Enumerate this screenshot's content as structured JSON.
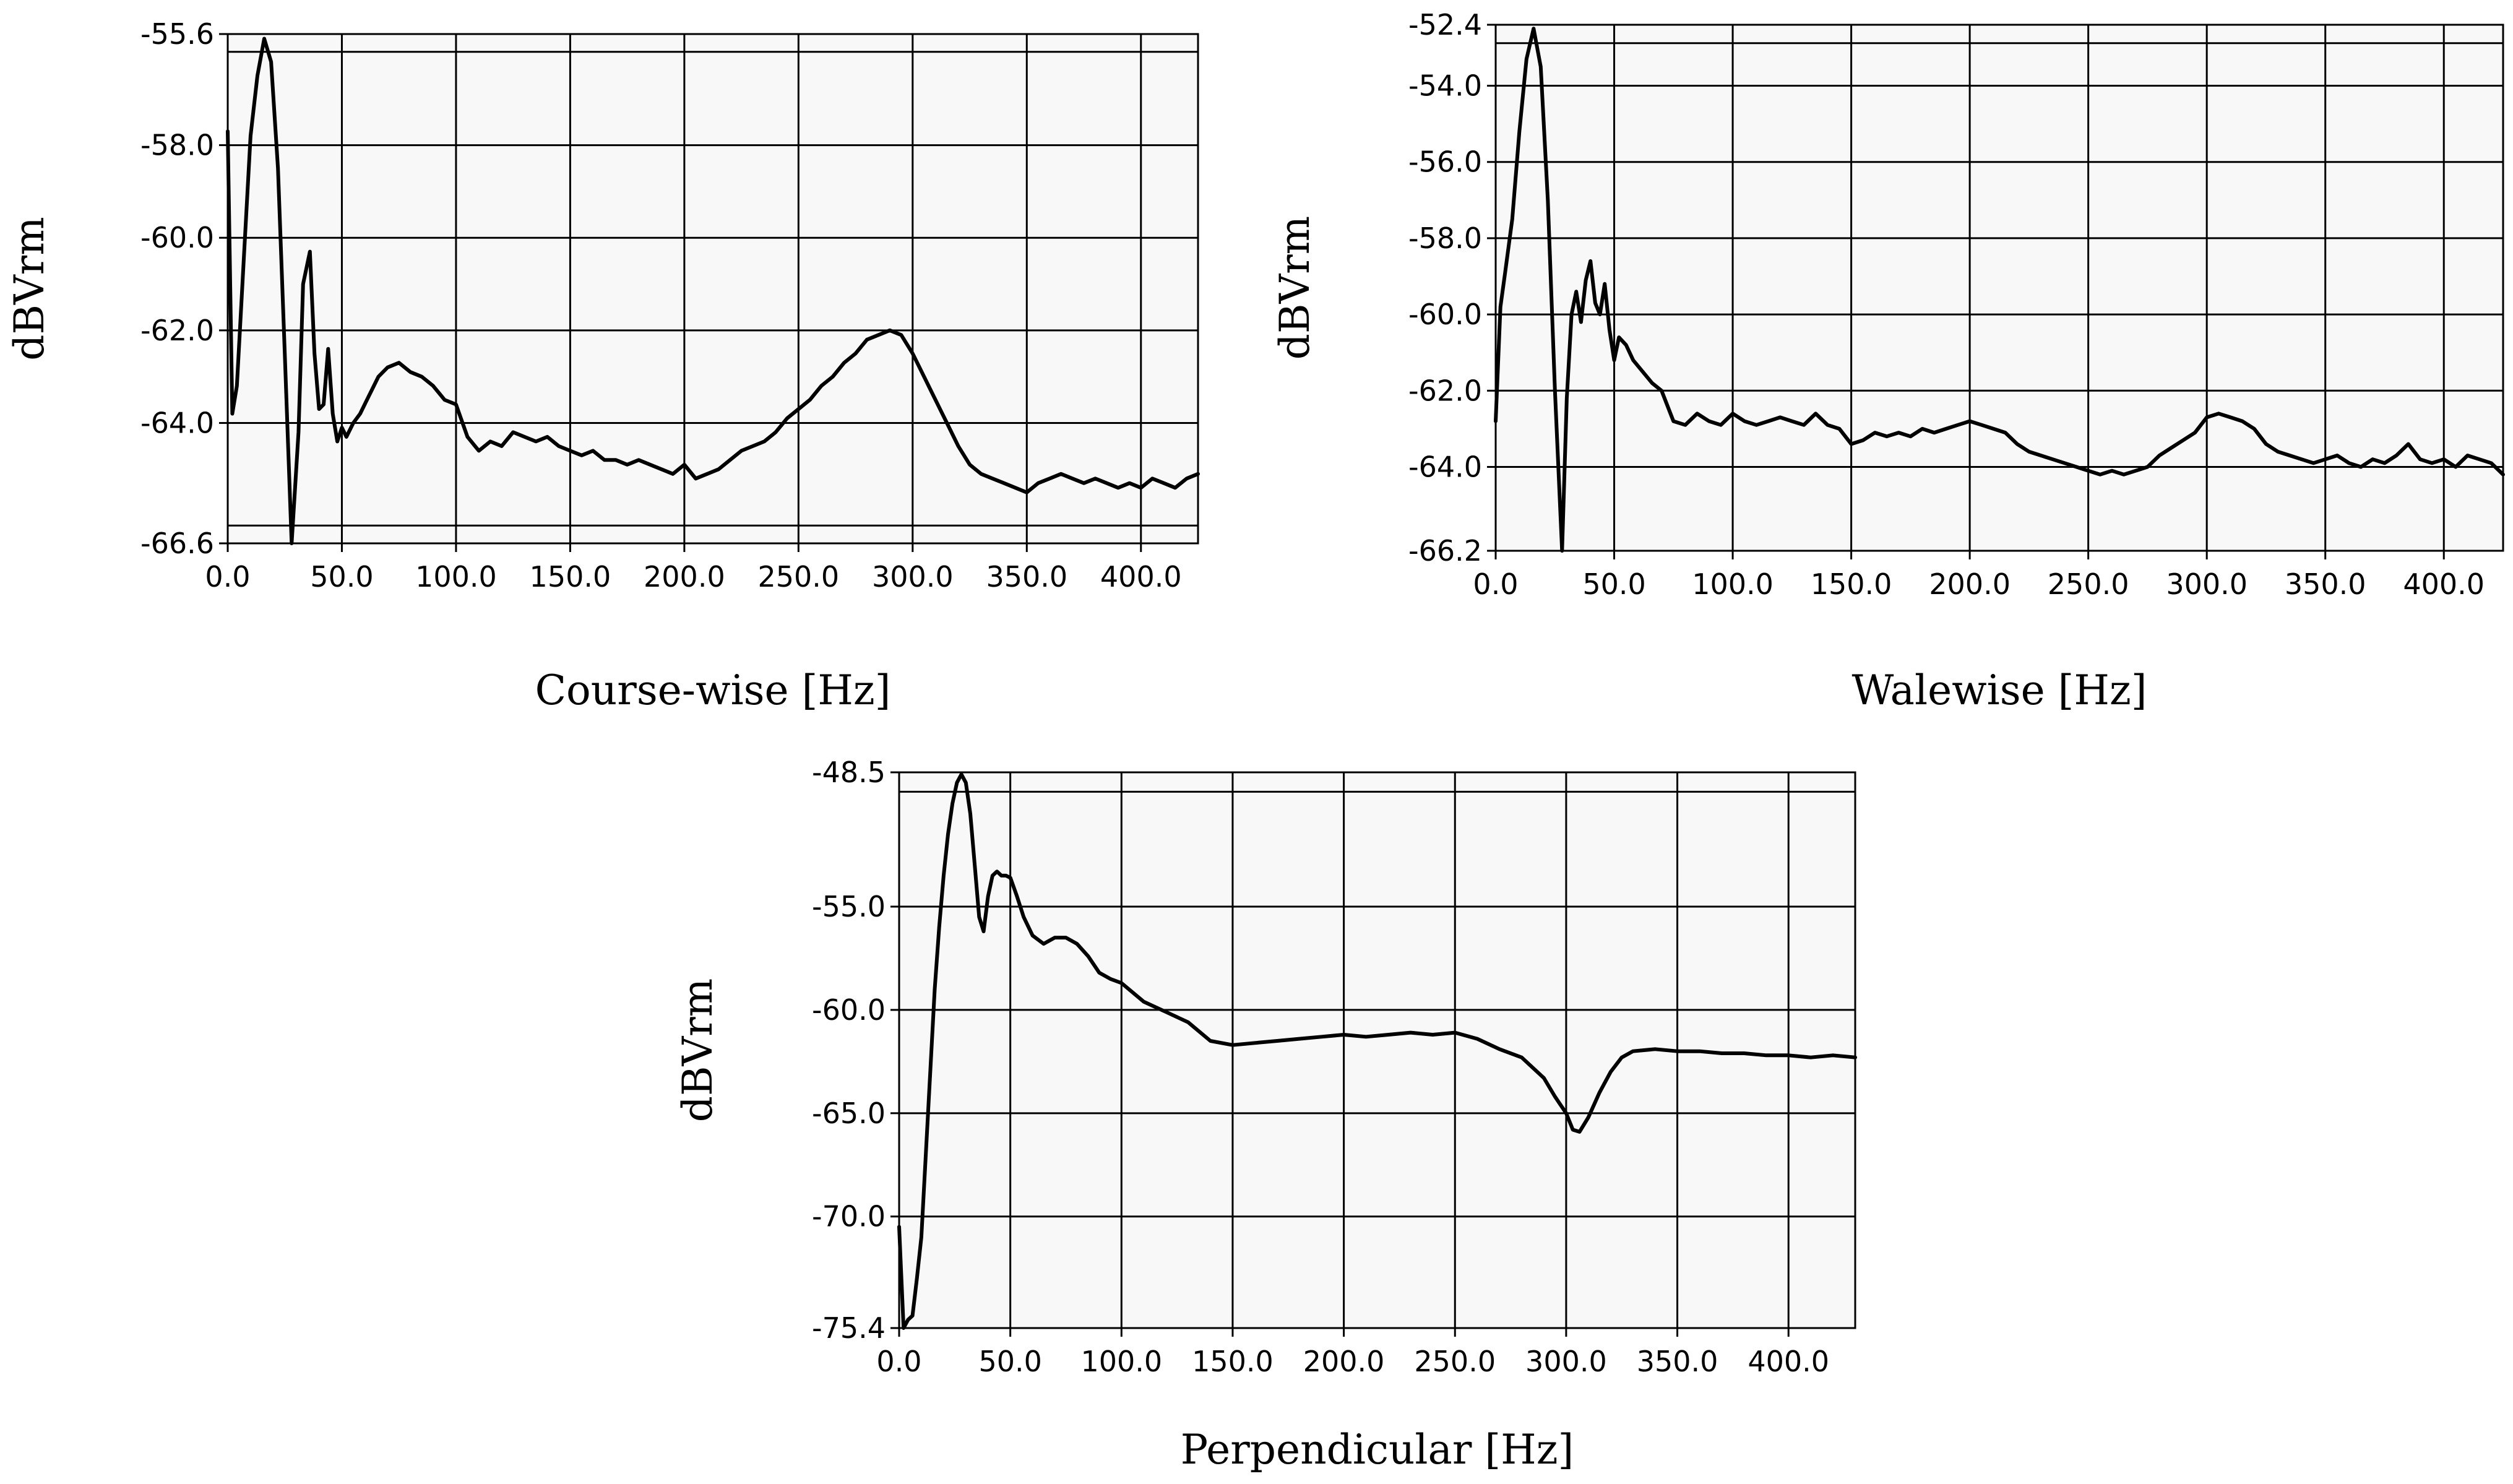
{
  "chart_data": [
    {
      "type": "line",
      "title": "",
      "xlabel": "Course-wise [Hz]",
      "ylabel": "dBVrm",
      "xlim": [
        0,
        425
      ],
      "ylim": [
        -66.6,
        -55.6
      ],
      "xticks": [
        0,
        50,
        100,
        150,
        200,
        250,
        300,
        350,
        400
      ],
      "xtick_labels": [
        "0.0",
        "50.0",
        "100.0",
        "150.0",
        "200.0",
        "250.0",
        "300.0",
        "350.0",
        "400.0"
      ],
      "yticks": [
        -66.6,
        -64,
        -62,
        -60,
        -58,
        -55.6
      ],
      "ytick_labels": [
        "-66.6",
        "-64.0",
        "-62.0",
        "-60.0",
        "-58.0",
        "-55.6"
      ],
      "grid": true,
      "series": [
        {
          "name": "Course-wise",
          "x": [
            0,
            2,
            4,
            7,
            10,
            13,
            16,
            19,
            22,
            25,
            28,
            31,
            33,
            36,
            38,
            40,
            42,
            44,
            46,
            48,
            50,
            52,
            55,
            58,
            62,
            66,
            70,
            75,
            80,
            85,
            90,
            95,
            100,
            105,
            110,
            115,
            120,
            125,
            130,
            135,
            140,
            145,
            150,
            155,
            160,
            165,
            170,
            175,
            180,
            185,
            190,
            195,
            200,
            205,
            210,
            215,
            220,
            225,
            230,
            235,
            240,
            245,
            250,
            255,
            260,
            265,
            270,
            275,
            280,
            285,
            290,
            295,
            300,
            305,
            310,
            315,
            320,
            325,
            330,
            335,
            340,
            345,
            350,
            355,
            360,
            365,
            370,
            375,
            380,
            385,
            390,
            395,
            400,
            405,
            410,
            415,
            420,
            425
          ],
          "y": [
            -57.7,
            -63.8,
            -63.2,
            -60.5,
            -57.8,
            -56.5,
            -55.7,
            -56.2,
            -58.5,
            -62.5,
            -66.6,
            -64.2,
            -61,
            -60.3,
            -62.5,
            -63.7,
            -63.6,
            -62.4,
            -63.8,
            -64.4,
            -64.1,
            -64.3,
            -64,
            -63.8,
            -63.4,
            -63,
            -62.8,
            -62.7,
            -62.9,
            -63,
            -63.2,
            -63.5,
            -63.6,
            -64.3,
            -64.6,
            -64.4,
            -64.5,
            -64.2,
            -64.3,
            -64.4,
            -64.3,
            -64.5,
            -64.6,
            -64.7,
            -64.6,
            -64.8,
            -64.8,
            -64.9,
            -64.8,
            -64.9,
            -65,
            -65.1,
            -64.9,
            -65.2,
            -65.1,
            -65,
            -64.8,
            -64.6,
            -64.5,
            -64.4,
            -64.2,
            -63.9,
            -63.7,
            -63.5,
            -63.2,
            -63,
            -62.7,
            -62.5,
            -62.2,
            -62.1,
            -62,
            -62.1,
            -62.5,
            -63,
            -63.5,
            -64,
            -64.5,
            -64.9,
            -65.1,
            -65.2,
            -65.3,
            -65.4,
            -65.5,
            -65.3,
            -65.2,
            -65.1,
            -65.2,
            -65.3,
            -65.2,
            -65.3,
            -65.4,
            -65.3,
            -65.4,
            -65.2,
            -65.3,
            -65.4,
            -65.2,
            -65.1
          ]
        }
      ]
    },
    {
      "type": "line",
      "title": "",
      "xlabel": "Walewise [Hz]",
      "ylabel": "dBVrm",
      "xlim": [
        0,
        425
      ],
      "ylim": [
        -66.2,
        -52.4
      ],
      "xticks": [
        0,
        50,
        100,
        150,
        200,
        250,
        300,
        350,
        400
      ],
      "xtick_labels": [
        "0.0",
        "50.0",
        "100.0",
        "150.0",
        "200.0",
        "250.0",
        "300.0",
        "350.0",
        "400.0"
      ],
      "yticks": [
        -66.2,
        -64,
        -62,
        -60,
        -58,
        -56,
        -54,
        -52.4
      ],
      "ytick_labels": [
        "-66.2",
        "-64.0",
        "-62.0",
        "-60.0",
        "-58.0",
        "-56.0",
        "-54.0",
        "-52.4"
      ],
      "grid": true,
      "series": [
        {
          "name": "Walewise",
          "x": [
            0,
            2,
            4,
            7,
            10,
            13,
            16,
            19,
            22,
            25,
            28,
            30,
            32,
            34,
            36,
            38,
            40,
            42,
            44,
            46,
            48,
            50,
            52,
            55,
            58,
            62,
            66,
            70,
            75,
            80,
            85,
            90,
            95,
            100,
            105,
            110,
            115,
            120,
            125,
            130,
            135,
            140,
            145,
            150,
            155,
            160,
            165,
            170,
            175,
            180,
            185,
            190,
            195,
            200,
            205,
            210,
            215,
            220,
            225,
            230,
            235,
            240,
            245,
            250,
            255,
            260,
            265,
            270,
            275,
            280,
            285,
            290,
            295,
            300,
            305,
            310,
            315,
            320,
            325,
            330,
            335,
            340,
            345,
            350,
            355,
            360,
            365,
            370,
            375,
            380,
            385,
            390,
            395,
            400,
            405,
            410,
            415,
            420,
            425
          ],
          "y": [
            -62.8,
            -59.8,
            -58.9,
            -57.5,
            -55.2,
            -53.3,
            -52.5,
            -53.5,
            -57,
            -62,
            -66.2,
            -62.2,
            -60,
            -59.4,
            -60.2,
            -59.1,
            -58.6,
            -59.7,
            -60,
            -59.2,
            -60.4,
            -61.2,
            -60.6,
            -60.8,
            -61.2,
            -61.5,
            -61.8,
            -62,
            -62.8,
            -62.9,
            -62.6,
            -62.8,
            -62.9,
            -62.6,
            -62.8,
            -62.9,
            -62.8,
            -62.7,
            -62.8,
            -62.9,
            -62.6,
            -62.9,
            -63,
            -63.4,
            -63.3,
            -63.1,
            -63.2,
            -63.1,
            -63.2,
            -63,
            -63.1,
            -63,
            -62.9,
            -62.8,
            -62.9,
            -63,
            -63.1,
            -63.4,
            -63.6,
            -63.7,
            -63.8,
            -63.9,
            -64,
            -64.1,
            -64.2,
            -64.1,
            -64.2,
            -64.1,
            -64,
            -63.7,
            -63.5,
            -63.3,
            -63.1,
            -62.7,
            -62.6,
            -62.7,
            -62.8,
            -63,
            -63.4,
            -63.6,
            -63.7,
            -63.8,
            -63.9,
            -63.8,
            -63.7,
            -63.9,
            -64,
            -63.8,
            -63.9,
            -63.7,
            -63.4,
            -63.8,
            -63.9,
            -63.8,
            -64,
            -63.7,
            -63.8,
            -63.9,
            -64.2
          ]
        }
      ]
    },
    {
      "type": "line",
      "title": "",
      "xlabel": "Perpendicular [Hz]",
      "ylabel": "dBVrm",
      "xlim": [
        0,
        430
      ],
      "ylim": [
        -75.4,
        -48.5
      ],
      "xticks": [
        0,
        50,
        100,
        150,
        200,
        250,
        300,
        350,
        400
      ],
      "xtick_labels": [
        "0.0",
        "50.0",
        "100.0",
        "150.0",
        "200.0",
        "250.0",
        "300.0",
        "350.0",
        "400.0"
      ],
      "yticks": [
        -75.4,
        -70,
        -65,
        -60,
        -55,
        -48.5
      ],
      "ytick_labels": [
        "-75.4",
        "-70.0",
        "-65.0",
        "-60.0",
        "-55.0",
        "-48.5"
      ],
      "grid": true,
      "series": [
        {
          "name": "Perpendicular",
          "x": [
            0,
            2,
            4,
            6,
            8,
            10,
            12,
            14,
            16,
            18,
            20,
            22,
            24,
            26,
            28,
            30,
            32,
            34,
            36,
            38,
            40,
            42,
            44,
            46,
            48,
            50,
            53,
            56,
            60,
            65,
            70,
            75,
            80,
            85,
            90,
            95,
            100,
            110,
            120,
            130,
            140,
            150,
            160,
            170,
            180,
            190,
            200,
            210,
            220,
            230,
            240,
            250,
            260,
            270,
            280,
            290,
            295,
            300,
            303,
            306,
            310,
            315,
            320,
            325,
            330,
            340,
            350,
            360,
            370,
            380,
            390,
            400,
            410,
            420,
            430
          ],
          "y": [
            -70.5,
            -75.4,
            -75,
            -74.8,
            -73,
            -71,
            -67,
            -63,
            -59,
            -56,
            -53.5,
            -51.5,
            -50,
            -49,
            -48.6,
            -49,
            -50.5,
            -53,
            -55.5,
            -56.2,
            -54.5,
            -53.5,
            -53.3,
            -53.5,
            -53.5,
            -53.6,
            -54.5,
            -55.5,
            -56.4,
            -56.8,
            -56.5,
            -56.5,
            -56.8,
            -57.4,
            -58.2,
            -58.5,
            -58.7,
            -59.6,
            -60.1,
            -60.6,
            -61.5,
            -61.7,
            -61.6,
            -61.5,
            -61.4,
            -61.3,
            -61.2,
            -61.3,
            -61.2,
            -61.1,
            -61.2,
            -61.1,
            -61.4,
            -61.9,
            -62.3,
            -63.3,
            -64.2,
            -65,
            -65.8,
            -65.9,
            -65.2,
            -64,
            -63,
            -62.3,
            -62,
            -61.9,
            -62,
            -62,
            -62.1,
            -62.1,
            -62.2,
            -62.2,
            -62.3,
            -62.2,
            -62.3
          ]
        }
      ]
    }
  ]
}
